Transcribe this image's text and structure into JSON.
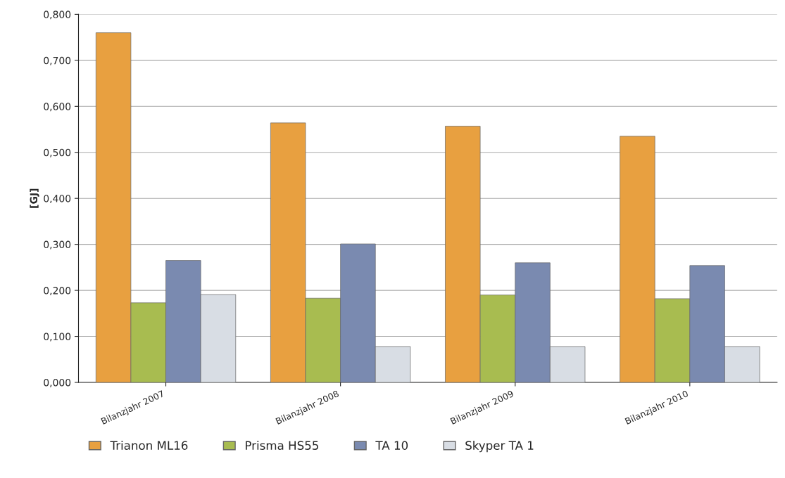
{
  "chart_data": {
    "type": "bar",
    "ylabel": "[GJ]",
    "categories": [
      "Bilanzjahr 2007",
      "Bilanzjahr 2008",
      "Bilanzjahr 2009",
      "Bilanzjahr 2010"
    ],
    "series": [
      {
        "name": "Trianon ML16",
        "color": "#e8a040",
        "values": [
          0.76,
          0.564,
          0.557,
          0.535
        ]
      },
      {
        "name": "Prisma HS55",
        "color": "#a8bc50",
        "values": [
          0.173,
          0.183,
          0.19,
          0.182
        ]
      },
      {
        "name": "TA 10",
        "color": "#7a8ab0",
        "values": [
          0.265,
          0.301,
          0.26,
          0.254
        ]
      },
      {
        "name": "Skyper TA 1",
        "color": "#d8dde4",
        "values": [
          0.191,
          0.078,
          0.078,
          0.078
        ]
      }
    ],
    "ylim": [
      0,
      0.8
    ],
    "yticks": [
      {
        "value": 0,
        "label": "0,000"
      },
      {
        "value": 0.1,
        "label": "0,100"
      },
      {
        "value": 0.2,
        "label": "0,200"
      },
      {
        "value": 0.3,
        "label": "0,300"
      },
      {
        "value": 0.4,
        "label": "0,400"
      },
      {
        "value": 0.5,
        "label": "0,500"
      },
      {
        "value": 0.6,
        "label": "0,600"
      },
      {
        "value": 0.7,
        "label": "0,700"
      },
      {
        "value": 0.8,
        "label": "0,800"
      }
    ],
    "grid": "y",
    "legend": "bottom"
  }
}
